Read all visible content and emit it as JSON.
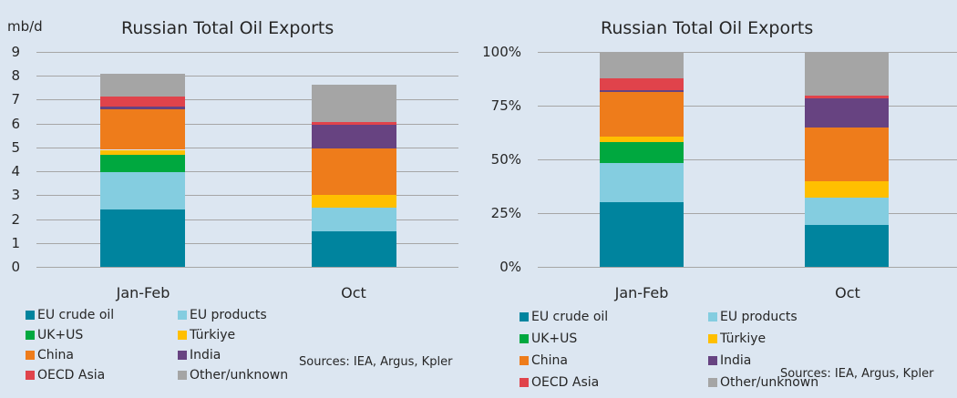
{
  "series_meta": [
    {
      "key": "eu_crude",
      "name": "EU crude oil",
      "color": "#00849e"
    },
    {
      "key": "eu_products",
      "name": "EU products",
      "color": "#84cde0"
    },
    {
      "key": "uk_us",
      "name": "UK+US",
      "color": "#00a83f"
    },
    {
      "key": "turkiye",
      "name": "Türkiye",
      "color": "#ffbf00"
    },
    {
      "key": "china",
      "name": "China",
      "color": "#ee7c1b"
    },
    {
      "key": "india",
      "name": "India",
      "color": "#674381"
    },
    {
      "key": "oecd_asia",
      "name": "OECD Asia",
      "color": "#e0434b"
    },
    {
      "key": "other",
      "name": "Other/unknown",
      "color": "#a5a5a5"
    }
  ],
  "left": {
    "title": "Russian Total Oil Exports",
    "unit": "mb/d",
    "yticks": [
      "0",
      "1",
      "2",
      "3",
      "4",
      "5",
      "6",
      "7",
      "8",
      "9"
    ],
    "categories": [
      "Jan-Feb",
      "Oct"
    ],
    "sources": "Sources: IEA, Argus, Kpler"
  },
  "right": {
    "title": "Russian Total Oil Exports",
    "yticks": [
      "0%",
      "25%",
      "50%",
      "75%",
      "100%"
    ],
    "categories": [
      "Jan-Feb",
      "Oct"
    ],
    "sources": "Sources: IEA, Argus, Kpler"
  },
  "legend": [
    "EU crude oil",
    "EU products",
    "UK+US",
    "Türkiye",
    "China",
    "India",
    "OECD Asia",
    "Other/unknown"
  ],
  "chart_data": [
    {
      "type": "bar",
      "stacked": true,
      "title": "Russian Total Oil Exports",
      "xlabel": "",
      "ylabel": "mb/d",
      "ylim": [
        0,
        9
      ],
      "grid": true,
      "legend_position": "bottom",
      "categories": [
        "Jan-Feb",
        "Oct"
      ],
      "series": [
        {
          "name": "EU crude oil",
          "values": [
            2.4,
            1.47
          ]
        },
        {
          "name": "EU products",
          "values": [
            1.55,
            1.0
          ]
        },
        {
          "name": "UK+US",
          "values": [
            0.75,
            0.0
          ]
        },
        {
          "name": "Türkiye",
          "values": [
            0.2,
            0.56
          ]
        },
        {
          "name": "China",
          "values": [
            1.7,
            1.92
          ]
        },
        {
          "name": "India",
          "values": [
            0.1,
            1.0
          ]
        },
        {
          "name": "OECD Asia",
          "values": [
            0.42,
            0.13
          ]
        },
        {
          "name": "Other/unknown",
          "values": [
            0.95,
            1.55
          ]
        }
      ],
      "annotations": [
        "Sources: IEA, Argus, Kpler"
      ]
    },
    {
      "type": "bar",
      "stacked": true,
      "percent": true,
      "title": "Russian Total Oil Exports",
      "xlabel": "",
      "ylabel": "",
      "ylim": [
        0,
        100
      ],
      "grid": true,
      "legend_position": "bottom",
      "categories": [
        "Jan-Feb",
        "Oct"
      ],
      "series": [
        {
          "name": "EU crude oil",
          "values": [
            30.0,
            19.4
          ]
        },
        {
          "name": "EU products",
          "values": [
            18.5,
            12.9
          ]
        },
        {
          "name": "UK+US",
          "values": [
            9.5,
            0.0
          ]
        },
        {
          "name": "Türkiye",
          "values": [
            2.5,
            7.4
          ]
        },
        {
          "name": "China",
          "values": [
            21.0,
            25.1
          ]
        },
        {
          "name": "India",
          "values": [
            0.8,
            13.5
          ]
        },
        {
          "name": "OECD Asia",
          "values": [
            5.5,
            1.4
          ]
        },
        {
          "name": "Other/unknown",
          "values": [
            12.2,
            20.3
          ]
        }
      ],
      "annotations": [
        "Sources: IEA, Argus, Kpler"
      ]
    }
  ]
}
